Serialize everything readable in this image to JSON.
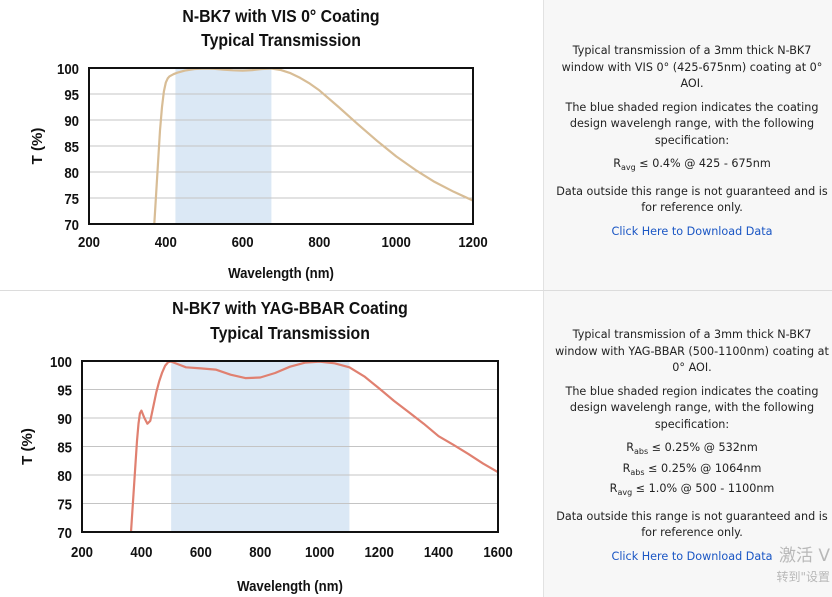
{
  "chart_data": [
    {
      "type": "line",
      "title": "N-BK7 with VIS 0° Coating",
      "subtitle": "Typical Transmission",
      "xlabel": "Wavelength (nm)",
      "ylabel": "T (%)",
      "xlim": [
        200,
        1200
      ],
      "ylim": [
        70,
        100
      ],
      "xticks": [
        "200",
        "400",
        "600",
        "800",
        "1000",
        "1200"
      ],
      "yticks": [
        "70",
        "75",
        "80",
        "85",
        "90",
        "95",
        "100"
      ],
      "shaded_region": [
        425,
        675
      ],
      "grid": true,
      "colors": {
        "line": "#d8bd96",
        "shade": "#dbe8f5",
        "grid": "#c4c4c4"
      },
      "series": [
        {
          "x": [
            370,
            375,
            380,
            385,
            390,
            395,
            400,
            405,
            410,
            420,
            430,
            450,
            475,
            500,
            525,
            550,
            575,
            600,
            625,
            650,
            675,
            700,
            725,
            750,
            775,
            800,
            850,
            900,
            950,
            1000,
            1050,
            1100,
            1150,
            1200
          ],
          "values": [
            70,
            76,
            82,
            88,
            92.5,
            95.5,
            97.2,
            98,
            98.4,
            98.8,
            99.1,
            99.5,
            99.8,
            99.9,
            99.85,
            99.7,
            99.55,
            99.5,
            99.6,
            99.8,
            99.9,
            99.6,
            99,
            98.1,
            97,
            95.7,
            92.5,
            89.2,
            86,
            83,
            80.4,
            78.1,
            76.2,
            74.5
          ]
        }
      ]
    },
    {
      "type": "line",
      "title": "N-BK7 with YAG-BBAR Coating",
      "subtitle": "Typical Transmission",
      "xlabel": "Wavelength (nm)",
      "ylabel": "T (%)",
      "xlim": [
        200,
        1600
      ],
      "ylim": [
        70,
        100
      ],
      "xticks": [
        "200",
        "400",
        "600",
        "800",
        "1000",
        "1200",
        "1400",
        "1600"
      ],
      "yticks": [
        "70",
        "75",
        "80",
        "85",
        "90",
        "95",
        "100"
      ],
      "shaded_region": [
        500,
        1100
      ],
      "grid": true,
      "colors": {
        "line": "#e08070",
        "shade": "#dbe8f5",
        "grid": "#c4c4c4"
      },
      "series": [
        {
          "x": [
            365,
            370,
            375,
            380,
            385,
            390,
            395,
            400,
            410,
            420,
            430,
            440,
            450,
            460,
            470,
            480,
            490,
            500,
            520,
            550,
            600,
            650,
            700,
            750,
            800,
            850,
            900,
            950,
            1000,
            1050,
            1100,
            1150,
            1200,
            1250,
            1300,
            1350,
            1400,
            1450,
            1500,
            1550,
            1600
          ],
          "values": [
            70,
            74,
            78,
            82,
            86,
            89,
            90.8,
            91.3,
            90,
            89,
            89.5,
            92,
            94.5,
            96.5,
            98,
            99.2,
            99.8,
            99.9,
            99.5,
            98.9,
            98.7,
            98.5,
            97.6,
            97,
            97.1,
            97.9,
            99,
            99.7,
            99.9,
            99.6,
            98.9,
            97.3,
            95.2,
            93,
            91,
            89,
            86.8,
            85.3,
            83.7,
            82,
            80.5
          ]
        }
      ]
    }
  ],
  "info": [
    {
      "desc": "Typical transmission of a 3mm thick N-BK7 window with VIS 0° (425-675nm) coating at 0° AOI.",
      "shade_note": "The blue shaded region indicates the coating design wavelengh range, with the following specification:",
      "specs": [
        {
          "sym": "R",
          "sub": "avg",
          "text": "≤ 0.4% @ 425 - 675nm"
        }
      ],
      "disclaimer": "Data outside this range is not guaranteed and is for reference only.",
      "link": "Click Here to Download Data"
    },
    {
      "desc": "Typical transmission of a 3mm thick N-BK7 window with YAG-BBAR (500-1100nm) coating at 0° AOI.",
      "shade_note": "The blue shaded region indicates the coating design wavelengh range, with the following specification:",
      "specs": [
        {
          "sym": "R",
          "sub": "abs",
          "text": "≤ 0.25% @ 532nm"
        },
        {
          "sym": "R",
          "sub": "abs",
          "text": "≤ 0.25% @ 1064nm"
        },
        {
          "sym": "R",
          "sub": "avg",
          "text": "≤ 1.0% @ 500 - 1100nm"
        }
      ],
      "disclaimer": "Data outside this range is not guaranteed and is for reference only.",
      "link": "Click Here to Download Data"
    }
  ],
  "watermark": {
    "line1": "激活 V",
    "line2": "转到\"设置"
  }
}
